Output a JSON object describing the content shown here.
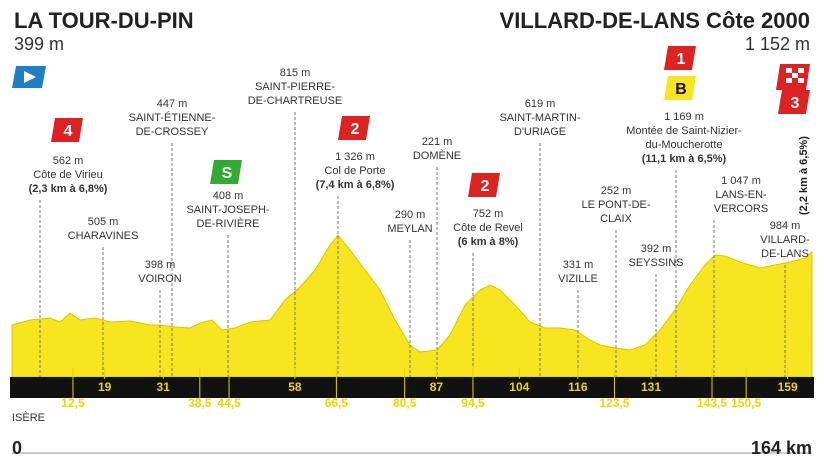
{
  "header": {
    "start": {
      "name": "LA TOUR-DU-PIN",
      "altitude": "399 m"
    },
    "finish": {
      "name": "VILLARD-DE-LANS Côte 2000",
      "altitude": "1 152 m"
    }
  },
  "points": [
    {
      "lines": [
        "562 m",
        "Côte de Virieu",
        "(2,3 km à 6,8%)"
      ]
    },
    {
      "lines": [
        "505 m",
        "CHARAVINES"
      ]
    },
    {
      "lines": [
        "398 m",
        "VOIRON"
      ]
    },
    {
      "lines": [
        "447 m",
        "SAINT-ÉTIENNE-",
        "DE-CROSSEY"
      ]
    },
    {
      "lines": [
        "408 m",
        "SAINT-JOSEPH-",
        "DE-RIVIÈRE"
      ]
    },
    {
      "lines": [
        "815 m",
        "SAINT-PIERRE-",
        "DE-CHARTREUSE"
      ]
    },
    {
      "lines": [
        "1 326 m",
        "Col de Porte",
        "(7,4 km à 6,8%)"
      ]
    },
    {
      "lines": [
        "290 m",
        "MEYLAN"
      ]
    },
    {
      "lines": [
        "221 m",
        "DOMÈNE"
      ]
    },
    {
      "lines": [
        "752 m",
        "Côte de Revel",
        "(6 km à 8%)"
      ]
    },
    {
      "lines": [
        "619 m",
        "SAINT-MARTIN-",
        "D'URIAGE"
      ]
    },
    {
      "lines": [
        "331 m",
        "VIZILLE"
      ]
    },
    {
      "lines": [
        "252 m",
        "LE PONT-DE-",
        "CLAIX"
      ]
    },
    {
      "lines": [
        "392 m",
        "SEYSSINS"
      ]
    },
    {
      "lines": [
        "1 169 m",
        "Montée de Saint-Nizier-",
        "du-Moucherotte",
        "(11,1 km à 6,5%)"
      ]
    },
    {
      "lines": [
        "1 047 m",
        "LANS-EN-",
        "VERCORS"
      ]
    },
    {
      "lines": [
        "984 m",
        "VILLARD-",
        "DE-LANS"
      ]
    }
  ],
  "finish_climb": "(2,2 km à 6,5%)",
  "badges": [
    "4",
    "S",
    "2",
    "2",
    "1",
    "B",
    "3"
  ],
  "km_markers": [
    {
      "value": 12.5,
      "label": "12,5"
    },
    19,
    31,
    {
      "value": 38.5,
      "label": "38,5"
    },
    {
      "value": 44.5,
      "label": "44,5"
    },
    58,
    {
      "value": 66.5,
      "label": "66,5"
    },
    {
      "value": 80.5,
      "label": "80,5"
    },
    87,
    {
      "value": 94.5,
      "label": "94,5"
    },
    104,
    116,
    {
      "value": 123.5,
      "label": "123,5"
    },
    131,
    {
      "value": 143.5,
      "label": "143,5"
    },
    {
      "value": 150.5,
      "label": "150,5"
    },
    159
  ],
  "footer": {
    "region": "ISÈRE",
    "start_km": "0",
    "end_km": "164 km"
  }
}
